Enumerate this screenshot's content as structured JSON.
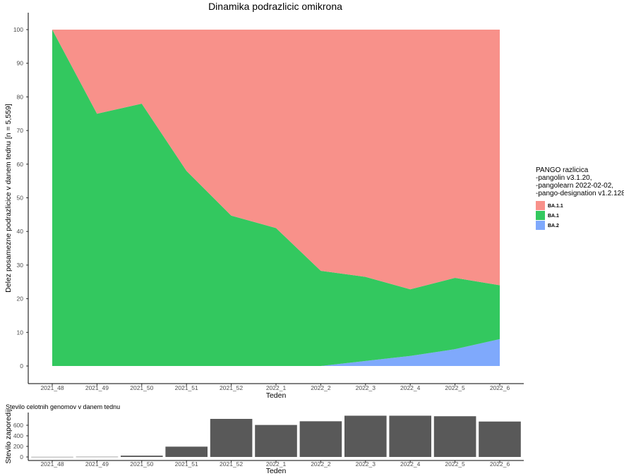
{
  "chart_data": [
    {
      "type": "area",
      "title": "Dinamika podrazlicic omikrona",
      "xlabel": "Teden",
      "ylabel": "Delez posamezne podrazlicice v danem tednu [n = 5,559]",
      "categories": [
        "2021_48",
        "2021_49",
        "2021_50",
        "2021_51",
        "2021_52",
        "2022_1",
        "2022_2",
        "2022_3",
        "2022_4",
        "2022_5",
        "2022_6"
      ],
      "stacked": true,
      "ylim": [
        0,
        100
      ],
      "yticks": [
        0,
        10,
        20,
        30,
        40,
        50,
        60,
        70,
        80,
        90,
        100
      ],
      "grid": false,
      "series": [
        {
          "name": "BA.2",
          "color": "#7fa9fc",
          "values": [
            0,
            0,
            0,
            0,
            0,
            0,
            0,
            1.5,
            3,
            5,
            8
          ]
        },
        {
          "name": "BA.1",
          "color": "#33c85f",
          "values": [
            100,
            75,
            78,
            58,
            44.7,
            41,
            28.3,
            25,
            19.8,
            21.2,
            16
          ]
        },
        {
          "name": "BA.1.1",
          "color": "#f8918a",
          "values": [
            0,
            25,
            22,
            42,
            55.3,
            59,
            71.7,
            73.5,
            77.2,
            73.8,
            76
          ]
        }
      ],
      "legend": {
        "position": "right",
        "title_lines": [
          "PANGO razlicica",
          "-pangolin v3.1.20,",
          "-pangolearn 2022-02-02,",
          "-pango-designation v1.2.128"
        ],
        "order": [
          "BA.1.1",
          "BA.1",
          "BA.2"
        ]
      }
    },
    {
      "type": "bar",
      "title": "Stevilo celotnih genomov v danem tednu",
      "xlabel": "Teden",
      "ylabel": "Stevilo zaporedij",
      "color": "#595959",
      "categories": [
        "2021_48",
        "2021_49",
        "2021_50",
        "2021_51",
        "2021_52",
        "2022_1",
        "2022_2",
        "2022_3",
        "2022_4",
        "2022_5",
        "2022_6"
      ],
      "values": [
        2,
        4,
        25,
        195,
        720,
        605,
        675,
        780,
        780,
        770,
        670
      ],
      "ylim": [
        0,
        800
      ],
      "yticks": [
        0,
        200,
        400,
        600
      ],
      "grid": false
    }
  ]
}
